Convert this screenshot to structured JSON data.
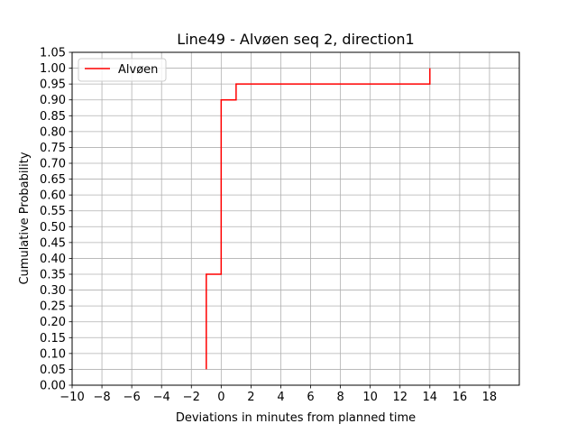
{
  "chart_data": {
    "type": "line",
    "step": true,
    "title": "Line49 - Alvøen seq 2, direction1",
    "xlabel": "Deviations in minutes from planned time",
    "ylabel": "Cumulative Probability",
    "xlim": [
      -10,
      20
    ],
    "ylim": [
      0,
      1.05
    ],
    "xticks": [
      -10,
      -8,
      -6,
      -4,
      -2,
      0,
      2,
      4,
      6,
      8,
      10,
      12,
      14,
      16,
      18
    ],
    "xtick_labels": [
      "−10",
      "−8",
      "−6",
      "−4",
      "−2",
      "0",
      "2",
      "4",
      "6",
      "8",
      "10",
      "12",
      "14",
      "16",
      "18"
    ],
    "yticks": [
      0.0,
      0.05,
      0.1,
      0.15,
      0.2,
      0.25,
      0.3,
      0.35,
      0.4,
      0.45,
      0.5,
      0.55,
      0.6,
      0.65,
      0.7,
      0.75,
      0.8,
      0.85,
      0.9,
      0.95,
      1.0,
      1.05
    ],
    "ytick_labels": [
      "0.00",
      "0.05",
      "0.10",
      "0.15",
      "0.20",
      "0.25",
      "0.30",
      "0.35",
      "0.40",
      "0.45",
      "0.50",
      "0.55",
      "0.60",
      "0.65",
      "0.70",
      "0.75",
      "0.80",
      "0.85",
      "0.90",
      "0.95",
      "1.00",
      "1.05"
    ],
    "grid": true,
    "legend_position": "top-left",
    "series": [
      {
        "name": "Alvøen",
        "color": "#ff0000",
        "x": [
          -1,
          -1,
          0,
          0,
          1,
          1,
          14,
          14
        ],
        "y": [
          0.05,
          0.35,
          0.35,
          0.9,
          0.9,
          0.95,
          0.95,
          1.0
        ]
      }
    ]
  }
}
